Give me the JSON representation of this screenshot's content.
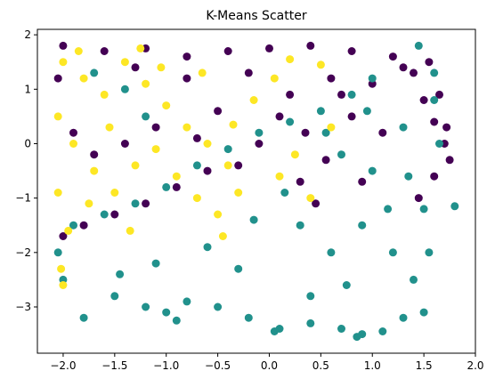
{
  "chart_data": {
    "type": "scatter",
    "title": "K-Means Scatter",
    "xlabel": "",
    "ylabel": "",
    "xlim": [
      -2.25,
      2.0
    ],
    "ylim": [
      -3.85,
      2.1
    ],
    "xticks": [
      -2.0,
      -1.5,
      -1.0,
      -0.5,
      0.0,
      0.5,
      1.0,
      1.5,
      2.0
    ],
    "xtick_labels": [
      "−2.0",
      "−1.5",
      "−1.0",
      "−0.5",
      "0.0",
      "0.5",
      "1.0",
      "1.5",
      "2.0"
    ],
    "yticks": [
      -3,
      -2,
      -1,
      0,
      1,
      2
    ],
    "ytick_labels": [
      "−3",
      "−2",
      "−1",
      "0",
      "1",
      "2"
    ],
    "grid": false,
    "legend": "none",
    "series": [
      {
        "color": "#440154",
        "points": [
          [
            -2.0,
            1.8
          ],
          [
            -1.6,
            1.7
          ],
          [
            -1.2,
            1.75
          ],
          [
            -0.8,
            1.6
          ],
          [
            -0.4,
            1.7
          ],
          [
            0.0,
            1.75
          ],
          [
            0.4,
            1.8
          ],
          [
            0.8,
            1.7
          ],
          [
            1.2,
            1.6
          ],
          [
            1.4,
            1.3
          ],
          [
            1.5,
            0.8
          ],
          [
            1.6,
            0.4
          ],
          [
            1.7,
            0.0
          ],
          [
            1.75,
            -0.3
          ],
          [
            1.6,
            -0.6
          ],
          [
            0.2,
            0.9
          ],
          [
            0.6,
            1.2
          ],
          [
            1.0,
            1.1
          ],
          [
            -0.2,
            1.3
          ],
          [
            0.1,
            0.5
          ],
          [
            -0.1,
            0.0
          ],
          [
            -0.3,
            -0.4
          ],
          [
            -0.6,
            -0.5
          ],
          [
            -0.9,
            -0.8
          ],
          [
            -1.2,
            -1.1
          ],
          [
            -1.5,
            -1.3
          ],
          [
            -1.8,
            -1.5
          ],
          [
            -2.0,
            -1.7
          ],
          [
            -1.9,
            0.2
          ],
          [
            -1.7,
            -0.2
          ],
          [
            -2.05,
            1.2
          ],
          [
            -1.4,
            0.0
          ],
          [
            -1.1,
            0.3
          ],
          [
            -0.7,
            0.1
          ],
          [
            0.35,
            0.2
          ],
          [
            0.55,
            -0.3
          ],
          [
            0.8,
            0.5
          ],
          [
            0.3,
            -0.7
          ],
          [
            0.9,
            -0.7
          ],
          [
            0.45,
            -1.1
          ],
          [
            1.1,
            0.2
          ],
          [
            0.7,
            0.9
          ],
          [
            -0.5,
            0.6
          ],
          [
            -0.8,
            1.2
          ],
          [
            -1.3,
            1.4
          ],
          [
            1.45,
            -1.0
          ],
          [
            1.3,
            1.4
          ],
          [
            1.55,
            1.5
          ],
          [
            1.65,
            0.9
          ],
          [
            1.72,
            0.3
          ]
        ]
      },
      {
        "color": "#21918c",
        "points": [
          [
            -2.0,
            -2.5
          ],
          [
            -1.8,
            -3.2
          ],
          [
            -1.5,
            -2.8
          ],
          [
            -1.2,
            -3.0
          ],
          [
            -1.0,
            -3.1
          ],
          [
            -0.8,
            -2.9
          ],
          [
            -0.5,
            -3.0
          ],
          [
            -0.2,
            -3.2
          ],
          [
            0.1,
            -3.4
          ],
          [
            0.4,
            -3.3
          ],
          [
            0.7,
            -3.4
          ],
          [
            0.9,
            -3.5
          ],
          [
            1.1,
            -3.45
          ],
          [
            1.3,
            -3.2
          ],
          [
            1.5,
            -3.1
          ],
          [
            1.8,
            -1.15
          ],
          [
            1.65,
            0.0
          ],
          [
            1.6,
            0.8
          ],
          [
            1.6,
            1.3
          ],
          [
            1.45,
            1.8
          ],
          [
            1.0,
            1.2
          ],
          [
            0.8,
            0.9
          ],
          [
            0.5,
            0.6
          ],
          [
            0.2,
            0.4
          ],
          [
            -0.1,
            0.2
          ],
          [
            -0.4,
            -0.1
          ],
          [
            -0.7,
            -0.4
          ],
          [
            -1.0,
            -0.8
          ],
          [
            -1.3,
            -1.1
          ],
          [
            -1.6,
            -1.3
          ],
          [
            -1.9,
            -1.5
          ],
          [
            -2.05,
            -2.0
          ],
          [
            -1.4,
            1.0
          ],
          [
            -1.7,
            1.3
          ],
          [
            -1.2,
            0.5
          ],
          [
            0.3,
            -1.5
          ],
          [
            0.6,
            -2.0
          ],
          [
            0.9,
            -1.5
          ],
          [
            1.2,
            -2.0
          ],
          [
            1.4,
            -2.5
          ],
          [
            1.0,
            -0.5
          ],
          [
            0.7,
            -0.2
          ],
          [
            1.3,
            0.3
          ],
          [
            0.4,
            -2.8
          ],
          [
            -0.3,
            -2.3
          ],
          [
            -0.6,
            -1.9
          ],
          [
            -1.1,
            -2.2
          ],
          [
            -1.45,
            -2.4
          ],
          [
            -0.9,
            -3.25
          ],
          [
            0.05,
            -3.45
          ],
          [
            0.85,
            -3.55
          ],
          [
            1.55,
            -2.0
          ],
          [
            1.5,
            -1.2
          ],
          [
            1.35,
            -0.6
          ],
          [
            0.15,
            -0.9
          ],
          [
            -0.15,
            -1.4
          ],
          [
            0.55,
            0.2
          ],
          [
            0.95,
            0.6
          ],
          [
            1.15,
            -1.2
          ],
          [
            0.75,
            -2.6
          ]
        ]
      },
      {
        "color": "#fde725",
        "points": [
          [
            -2.0,
            1.5
          ],
          [
            -1.8,
            1.2
          ],
          [
            -1.6,
            0.9
          ],
          [
            -1.4,
            1.5
          ],
          [
            -1.2,
            1.1
          ],
          [
            -1.0,
            0.7
          ],
          [
            -0.8,
            0.3
          ],
          [
            -0.6,
            0.0
          ],
          [
            -0.4,
            -0.4
          ],
          [
            -0.3,
            -0.9
          ],
          [
            -2.05,
            0.5
          ],
          [
            -1.9,
            0.0
          ],
          [
            -1.7,
            -0.5
          ],
          [
            -1.5,
            -0.9
          ],
          [
            -1.3,
            -0.4
          ],
          [
            -1.1,
            -0.1
          ],
          [
            -0.9,
            -0.6
          ],
          [
            -0.7,
            -1.0
          ],
          [
            -0.5,
            -1.3
          ],
          [
            -2.05,
            -0.9
          ],
          [
            -1.95,
            -1.6
          ],
          [
            -2.0,
            -2.6
          ],
          [
            0.2,
            1.55
          ],
          [
            0.5,
            1.45
          ],
          [
            0.6,
            0.3
          ],
          [
            0.25,
            -0.2
          ],
          [
            0.4,
            -1.0
          ],
          [
            -1.85,
            1.7
          ],
          [
            -1.25,
            1.75
          ],
          [
            -0.65,
            1.3
          ],
          [
            -0.15,
            0.8
          ],
          [
            0.1,
            -0.6
          ],
          [
            -2.02,
            -2.3
          ],
          [
            -1.55,
            0.3
          ],
          [
            -1.05,
            1.4
          ],
          [
            -0.35,
            0.35
          ],
          [
            -1.75,
            -1.1
          ],
          [
            -1.35,
            -1.6
          ],
          [
            -0.45,
            -1.7
          ],
          [
            0.05,
            1.2
          ]
        ]
      }
    ]
  }
}
